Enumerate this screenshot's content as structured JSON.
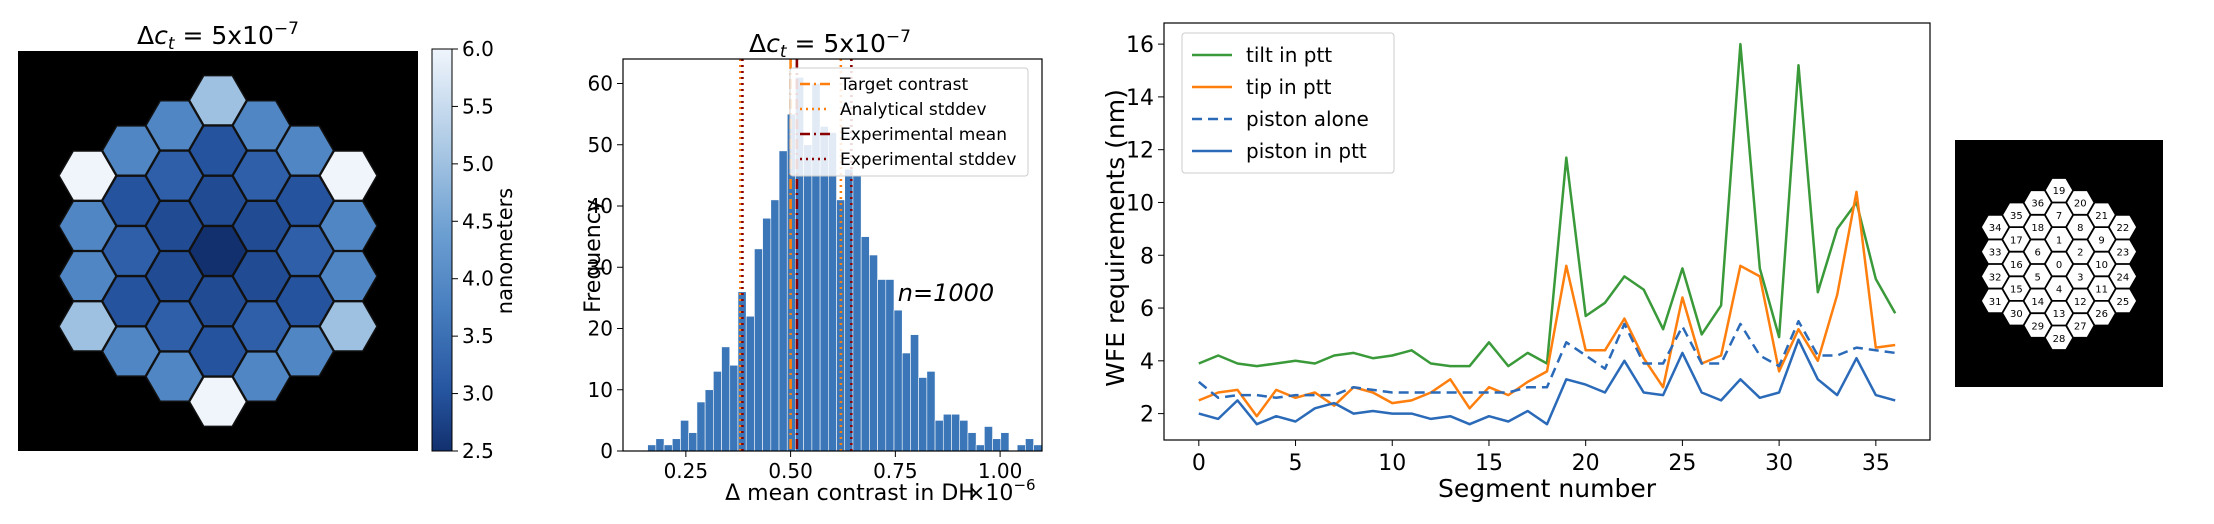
{
  "chart_data": [
    {
      "type": "heatmap",
      "title": "Δc_t = 5x10^-7",
      "title_parts": {
        "prefix": "Δ",
        "var": "c",
        "sub": "t",
        "eq": " = 5x10",
        "exp": "−7"
      },
      "description": "Hexagonal segmented mirror map of per-segment requirements",
      "colorbar": {
        "label": "nanometers",
        "vmin": 2.5,
        "vmax": 6.0,
        "tick_values": [
          2.5,
          3.0,
          3.5,
          4.0,
          4.5,
          5.0,
          5.5,
          6.0
        ],
        "tick_labels": [
          "2.5",
          "3.0",
          "3.5",
          "4.0",
          "4.5",
          "5.0",
          "5.5",
          "6.0"
        ]
      },
      "segment_values": [
        2.5,
        2.9,
        2.9,
        2.9,
        2.9,
        2.9,
        2.9,
        3.0,
        3.2,
        3.0,
        3.2,
        3.0,
        3.2,
        3.0,
        3.2,
        3.0,
        3.2,
        3.0,
        3.2,
        5.0,
        3.9,
        3.9,
        6.0,
        3.9,
        3.9,
        5.0,
        3.9,
        3.9,
        6.0,
        3.9,
        3.9,
        5.0,
        3.9,
        3.9,
        6.0,
        3.9,
        3.9
      ]
    },
    {
      "type": "bar",
      "title": "Δc_t = 5x10^-7",
      "title_parts": {
        "prefix": "Δ",
        "var": "c",
        "sub": "t",
        "eq": " = 5x10",
        "exp": "−7"
      },
      "xlabel": "Δ mean contrast in DH",
      "x_offset_text": "×10",
      "x_offset_exp": "−6",
      "ylabel": "Frequency",
      "xlim": [
        0.1,
        1.1
      ],
      "ylim": [
        0,
        64
      ],
      "x_ticks": [
        0.25,
        0.5,
        0.75,
        1.0
      ],
      "x_tick_labels": [
        "0.25",
        "0.50",
        "0.75",
        "1.00"
      ],
      "y_ticks": [
        0,
        10,
        20,
        30,
        40,
        50,
        60
      ],
      "y_tick_labels": [
        "0",
        "10",
        "20",
        "30",
        "40",
        "50",
        "60"
      ],
      "annotation": "n=1000",
      "bin_start": 0.1,
      "bin_width": 0.0196,
      "counts": [
        0,
        0,
        0,
        1,
        2,
        1,
        2,
        5,
        3,
        8,
        10,
        13,
        17,
        14,
        26,
        22,
        33,
        38,
        41,
        49,
        55,
        61,
        50,
        60,
        53,
        52,
        41,
        46,
        45,
        35,
        32,
        28,
        28,
        23,
        16,
        19,
        12,
        13,
        5,
        6,
        6,
        5,
        3,
        1,
        4,
        2,
        3,
        0,
        1,
        2,
        1
      ],
      "vertical_lines": [
        {
          "label": "Target contrast",
          "value": 0.5,
          "color": "#ff7f0e",
          "style": "dashdot"
        },
        {
          "label": "Analytical stddev",
          "value": 0.38,
          "value2": 0.62,
          "color": "#ff7f0e",
          "style": "dotted"
        },
        {
          "label": "Experimental mean",
          "value": 0.515,
          "color": "#8b0000",
          "style": "dashdot"
        },
        {
          "label": "Experimental stddev",
          "value": 0.385,
          "value2": 0.645,
          "color": "#8b0000",
          "style": "dotted"
        }
      ],
      "legend": [
        "Target contrast",
        "Analytical stddev",
        "Experimental mean",
        "Experimental stddev"
      ],
      "legend_position": "top-right"
    },
    {
      "type": "line",
      "title": "",
      "xlabel": "Segment number",
      "ylabel": "WFE requirements (nm)",
      "xlim": [
        -1.8,
        37.8
      ],
      "ylim": [
        1.0,
        16.8
      ],
      "x_ticks": [
        0,
        5,
        10,
        15,
        20,
        25,
        30,
        35
      ],
      "x_tick_labels": [
        "0",
        "5",
        "10",
        "15",
        "20",
        "25",
        "30",
        "35"
      ],
      "y_ticks": [
        2,
        4,
        6,
        8,
        10,
        12,
        14,
        16
      ],
      "y_tick_labels": [
        "2",
        "4",
        "6",
        "8",
        "10",
        "12",
        "14",
        "16"
      ],
      "x": [
        0,
        1,
        2,
        3,
        4,
        5,
        6,
        7,
        8,
        9,
        10,
        11,
        12,
        13,
        14,
        15,
        16,
        17,
        18,
        19,
        20,
        21,
        22,
        23,
        24,
        25,
        26,
        27,
        28,
        29,
        30,
        31,
        32,
        33,
        34,
        35,
        36
      ],
      "series": [
        {
          "name": "tilt in ptt",
          "color": "#3a9a3a",
          "dash": "solid",
          "values": [
            3.9,
            4.2,
            3.9,
            3.8,
            3.9,
            4.0,
            3.9,
            4.2,
            4.3,
            4.1,
            4.2,
            4.4,
            3.9,
            3.8,
            3.8,
            4.7,
            3.8,
            4.3,
            3.9,
            11.7,
            5.7,
            6.2,
            7.2,
            6.7,
            5.2,
            7.5,
            5.0,
            6.1,
            16.0,
            7.5,
            4.9,
            15.2,
            6.6,
            9.0,
            10.0,
            7.1,
            5.8
          ]
        },
        {
          "name": "tip in ptt",
          "color": "#ff7f0e",
          "dash": "solid",
          "values": [
            2.5,
            2.8,
            2.9,
            1.9,
            2.9,
            2.6,
            2.8,
            2.3,
            3.0,
            2.8,
            2.4,
            2.5,
            2.8,
            3.3,
            2.2,
            3.0,
            2.7,
            3.2,
            3.6,
            7.6,
            4.4,
            4.4,
            5.6,
            4.1,
            3.0,
            6.4,
            3.9,
            4.2,
            7.6,
            7.2,
            3.6,
            5.2,
            4.0,
            6.5,
            10.4,
            4.5,
            4.6
          ]
        },
        {
          "name": "piston alone",
          "color": "#2a6ab8",
          "dash": "dashed",
          "values": [
            3.2,
            2.6,
            2.7,
            2.7,
            2.6,
            2.7,
            2.7,
            2.7,
            3.0,
            2.9,
            2.8,
            2.8,
            2.8,
            2.8,
            2.8,
            2.8,
            2.8,
            3.0,
            3.0,
            4.7,
            4.2,
            3.7,
            5.4,
            3.9,
            3.9,
            5.3,
            3.9,
            3.9,
            5.4,
            4.2,
            3.8,
            5.5,
            4.2,
            4.2,
            4.5,
            4.4,
            4.3
          ]
        },
        {
          "name": "piston in ptt",
          "color": "#2a6ab8",
          "dash": "solid",
          "values": [
            2.0,
            1.8,
            2.5,
            1.6,
            1.9,
            1.7,
            2.2,
            2.4,
            2.0,
            2.1,
            2.0,
            2.0,
            1.8,
            1.9,
            1.6,
            1.9,
            1.7,
            2.1,
            1.6,
            3.3,
            3.1,
            2.8,
            4.0,
            2.8,
            2.7,
            4.3,
            2.8,
            2.5,
            3.3,
            2.6,
            2.8,
            4.8,
            3.3,
            2.7,
            4.1,
            2.7,
            2.5
          ]
        }
      ],
      "legend": [
        "tilt in ptt",
        "tip in ptt",
        "piston alone",
        "piston in ptt"
      ],
      "legend_position": "top-left"
    },
    {
      "type": "diagram",
      "title": "",
      "description": "Segment numbering layout",
      "segment_labels": [
        "0",
        "1",
        "2",
        "3",
        "4",
        "5",
        "6",
        "7",
        "8",
        "9",
        "10",
        "11",
        "12",
        "13",
        "14",
        "15",
        "16",
        "17",
        "18",
        "19",
        "20",
        "21",
        "22",
        "23",
        "24",
        "25",
        "26",
        "27",
        "28",
        "29",
        "30",
        "31",
        "32",
        "33",
        "34",
        "35",
        "36"
      ]
    }
  ]
}
